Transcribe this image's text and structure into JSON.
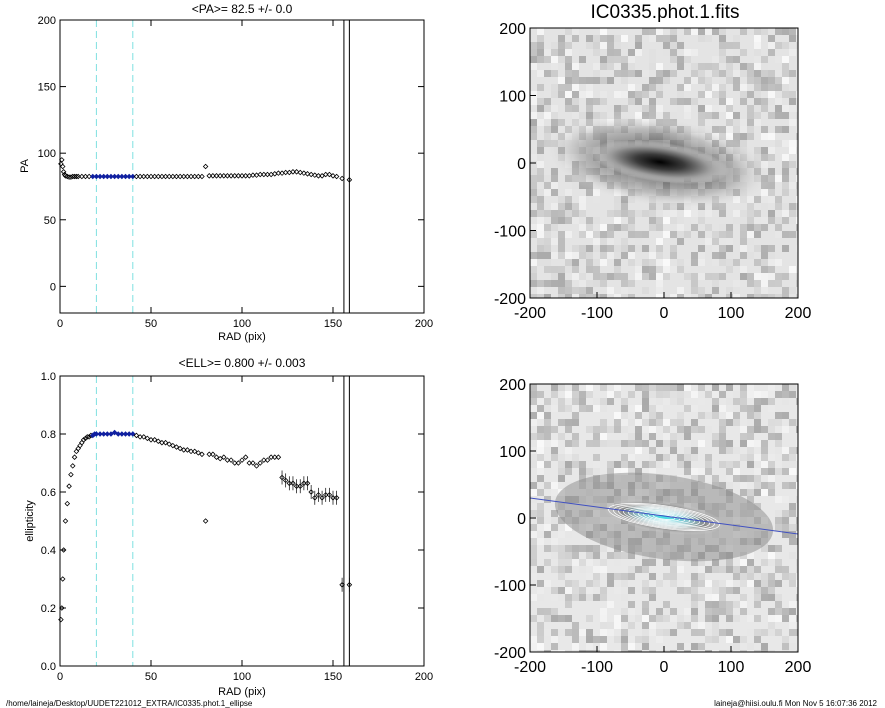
{
  "chart_data": [
    {
      "type": "scatter",
      "title": "<PA>=  82.5 +/-   0.0",
      "xlabel": "RAD (pix)",
      "ylabel": "PA",
      "xlim": [
        0,
        200
      ],
      "ylim": [
        -20,
        200
      ],
      "xticks": [
        "0",
        "50",
        "100",
        "150",
        "200"
      ],
      "yticks": [
        "0",
        "50",
        "100",
        "150",
        "200"
      ],
      "grid": false,
      "reference_lines_cyan_dashed": [
        20,
        40
      ],
      "reference_lines_black_solid": [
        156,
        159
      ],
      "fit_range_blue": [
        18,
        40
      ],
      "series": [
        {
          "x": [
            0.5,
            1,
            1.5,
            2,
            2.5,
            3,
            4,
            5,
            6,
            7,
            8,
            9,
            10,
            12,
            14,
            16,
            18,
            20,
            22,
            24,
            26,
            28,
            30,
            32,
            34,
            36,
            38,
            40,
            42,
            44,
            46,
            48,
            50,
            52,
            54,
            56,
            58,
            60,
            62,
            64,
            66,
            68,
            70,
            72,
            74,
            76,
            78,
            80,
            82,
            84,
            86,
            88,
            90,
            92,
            94,
            96,
            98,
            100,
            102,
            104,
            106,
            108,
            110,
            112,
            114,
            116,
            118,
            120,
            122,
            124,
            126,
            128,
            130,
            132,
            134,
            136,
            138,
            140,
            142,
            144,
            146,
            148,
            150,
            152,
            155,
            159
          ],
          "y": [
            92,
            95,
            90,
            86,
            84,
            83,
            82.5,
            82,
            82,
            82.5,
            82.5,
            82.5,
            82.5,
            82.5,
            82.5,
            82.5,
            82.5,
            82.5,
            82.5,
            82.5,
            82.5,
            82.5,
            82.5,
            82.5,
            82.5,
            82.5,
            82.5,
            82.5,
            82.5,
            82.5,
            82.5,
            82.5,
            82.5,
            82.5,
            82.5,
            82.5,
            82.5,
            82.5,
            82.5,
            82.5,
            82.5,
            82.5,
            82.5,
            82.5,
            82.5,
            82.5,
            82.5,
            90,
            83,
            83,
            83,
            83,
            83,
            83,
            83,
            83,
            83,
            83,
            83,
            83,
            83.5,
            83.5,
            84,
            84,
            84,
            84,
            84.5,
            85,
            85,
            85.5,
            85.5,
            86,
            86,
            85.5,
            85,
            84.5,
            84,
            83.5,
            83,
            83,
            84,
            84,
            83,
            82.5,
            81,
            80
          ]
        }
      ]
    },
    {
      "type": "scatter",
      "title": "<ELL>= 0.800 +/-  0.003",
      "xlabel": "RAD (pix)",
      "ylabel": "ellipticity",
      "xlim": [
        0,
        200
      ],
      "ylim": [
        0.0,
        1.0
      ],
      "xticks": [
        "0",
        "50",
        "100",
        "150",
        "200"
      ],
      "yticks": [
        "0.0",
        "0.2",
        "0.4",
        "0.6",
        "0.8",
        "1.0"
      ],
      "grid": false,
      "reference_lines_cyan_dashed": [
        20,
        40
      ],
      "reference_lines_black_solid": [
        156,
        159
      ],
      "fit_range_blue": [
        18,
        40
      ],
      "series": [
        {
          "x": [
            0.5,
            1,
            1.5,
            2,
            3,
            4,
            5,
            6,
            7,
            8,
            9,
            10,
            11,
            12,
            13,
            14,
            15,
            16,
            17,
            18,
            19,
            20,
            22,
            24,
            26,
            28,
            30,
            32,
            34,
            36,
            38,
            40,
            42,
            44,
            46,
            48,
            50,
            52,
            54,
            56,
            58,
            60,
            62,
            64,
            66,
            68,
            70,
            72,
            74,
            76,
            78,
            80,
            82,
            84,
            86,
            88,
            90,
            92,
            94,
            96,
            98,
            100,
            102,
            104,
            106,
            108,
            110,
            112,
            114,
            116,
            118,
            120,
            122,
            124,
            126,
            128,
            130,
            132,
            134,
            136,
            138,
            140,
            142,
            144,
            146,
            148,
            150,
            152,
            155,
            159
          ],
          "y": [
            0.16,
            0.2,
            0.3,
            0.4,
            0.5,
            0.56,
            0.62,
            0.66,
            0.69,
            0.72,
            0.74,
            0.75,
            0.76,
            0.77,
            0.78,
            0.785,
            0.79,
            0.79,
            0.795,
            0.795,
            0.8,
            0.8,
            0.8,
            0.8,
            0.8,
            0.8,
            0.805,
            0.8,
            0.8,
            0.8,
            0.8,
            0.8,
            0.795,
            0.79,
            0.79,
            0.785,
            0.78,
            0.78,
            0.775,
            0.77,
            0.77,
            0.765,
            0.76,
            0.755,
            0.75,
            0.745,
            0.745,
            0.74,
            0.74,
            0.735,
            0.73,
            0.5,
            0.73,
            0.73,
            0.72,
            0.715,
            0.72,
            0.71,
            0.71,
            0.7,
            0.7,
            0.71,
            0.72,
            0.7,
            0.7,
            0.69,
            0.7,
            0.71,
            0.71,
            0.72,
            0.72,
            0.72,
            0.65,
            0.64,
            0.63,
            0.63,
            0.62,
            0.62,
            0.63,
            0.63,
            0.6,
            0.58,
            0.59,
            0.58,
            0.59,
            0.59,
            0.58,
            0.58,
            0.28,
            0.28
          ]
        }
      ]
    }
  ],
  "images": {
    "top": {
      "title": "IC0335.phot.1.fits",
      "xticks": [
        "-200",
        "-100",
        "0",
        "100",
        "200"
      ],
      "yticks": [
        "200",
        "100",
        "0",
        "-100",
        "-200"
      ]
    },
    "bottom": {
      "title": "",
      "xticks": [
        "-200",
        "-100",
        "0",
        "100",
        "200"
      ],
      "yticks": [
        "200",
        "100",
        "0",
        "-100",
        "-200"
      ]
    }
  },
  "footer": {
    "left": "/home/laineja/Desktop/UUDET221012_EXTRA/IC0335.phot.1_ellipse",
    "right": "laineja@hiisi.oulu.fi  Mon Nov  5 16:07:36 2012"
  },
  "colors": {
    "cyan": "#7fe0e0",
    "blue": "#1020a0",
    "axis": "#000000",
    "fit_line": "#4050c0"
  }
}
